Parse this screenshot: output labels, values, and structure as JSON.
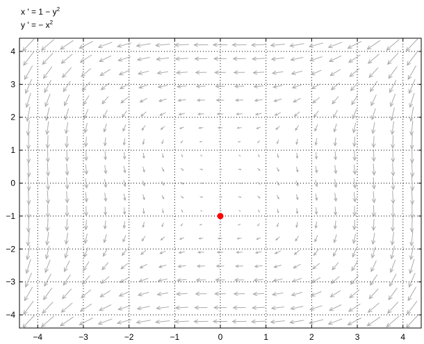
{
  "equations": {
    "line1_prefix": "x ' = 1 − y",
    "line1_exp": "2",
    "line2_prefix": "y ' = − x",
    "line2_exp": "2"
  },
  "chart_data": {
    "type": "vector_field",
    "title": "",
    "xlabel": "",
    "ylabel": "",
    "xlim": [
      -4.4,
      4.4
    ],
    "ylim": [
      -4.4,
      4.4
    ],
    "xticks": [
      -4,
      -3,
      -2,
      -1,
      0,
      1,
      2,
      3,
      4
    ],
    "yticks": [
      -4,
      -3,
      -2,
      -1,
      0,
      1,
      2,
      3,
      4
    ],
    "grid": "dotted",
    "field": {
      "dx": "1 - y^2",
      "dy": "-x^2"
    },
    "sample_grid": {
      "x_start": -4.2,
      "x_end": 4.2,
      "y_start": -4.2,
      "y_end": 4.2,
      "count": 21
    },
    "equilibrium_points": [
      {
        "x": 0,
        "y": -1,
        "color": "#ff0000"
      }
    ],
    "arrow_color": "#aaaaaa"
  }
}
